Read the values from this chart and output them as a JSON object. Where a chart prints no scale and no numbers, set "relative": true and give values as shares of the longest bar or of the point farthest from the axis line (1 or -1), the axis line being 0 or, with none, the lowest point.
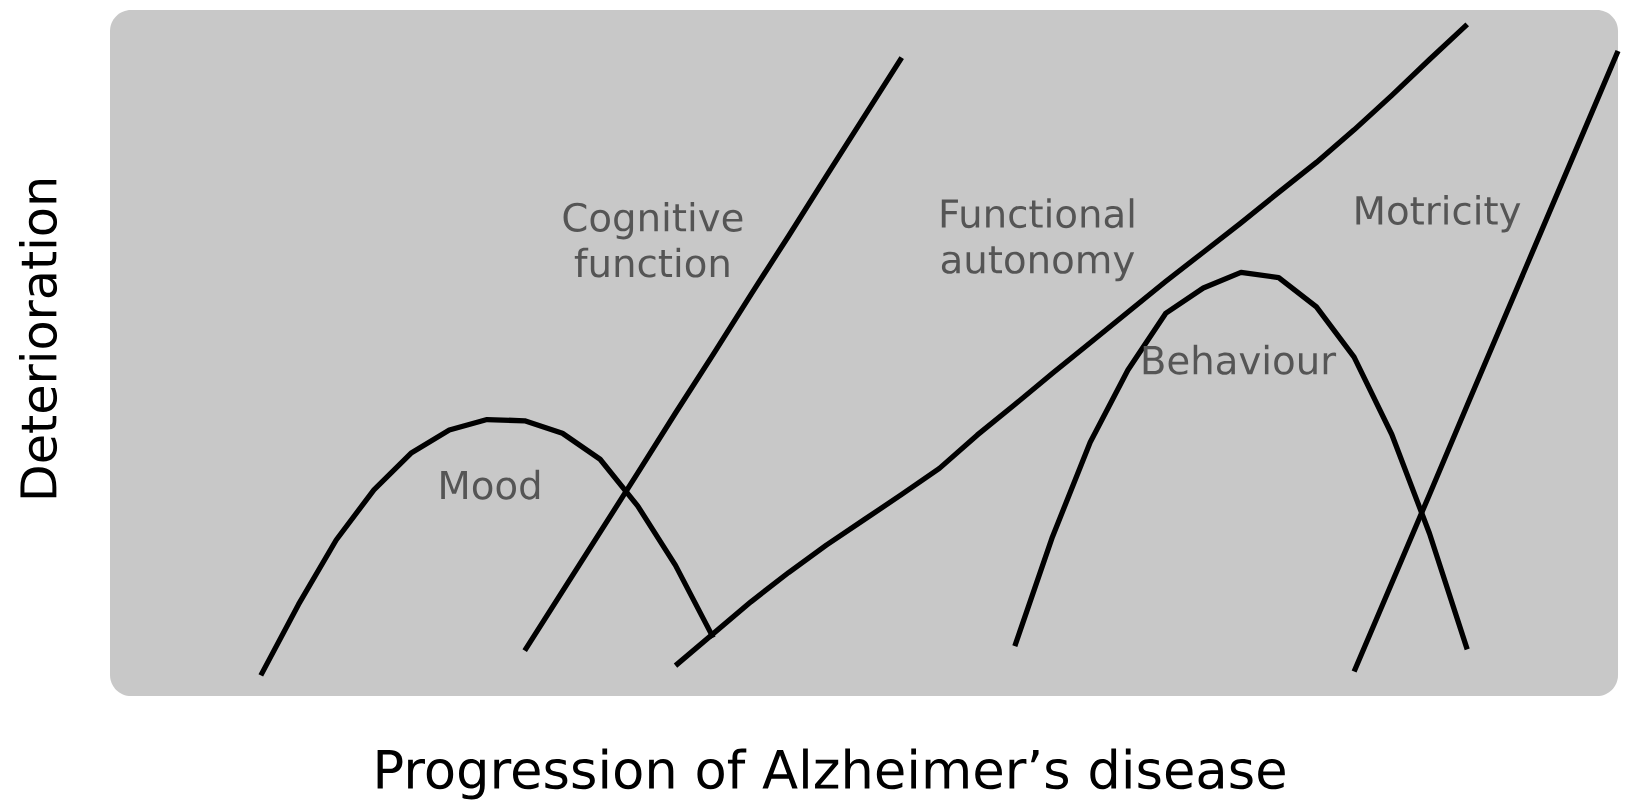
{
  "chart_data": {
    "type": "line",
    "relative": true,
    "xlabel": "Progression of Alzheimer’s disease",
    "ylabel": "Deterioration",
    "marker": "none",
    "line_style": "solid",
    "categories": [
      null,
      null,
      null,
      null,
      null,
      null,
      null,
      null,
      null,
      null,
      null,
      null,
      null,
      null,
      null,
      null,
      null,
      null,
      null,
      null,
      null,
      null,
      null,
      null,
      null,
      null,
      null,
      null,
      null,
      null,
      null,
      null,
      null,
      null,
      null,
      null,
      null,
      null,
      null,
      null,
      null
    ],
    "series": [
      {
        "name": "Mood",
        "color": "#000000",
        "values": [
          null,
          null,
          null,
          null,
          0,
          0.109,
          0.208,
          0.285,
          0.342,
          0.377,
          0.393,
          0.391,
          0.372,
          0.332,
          0.26,
          0.169,
          0.058,
          null,
          null,
          null,
          null,
          null,
          null,
          null,
          null,
          null,
          null,
          null,
          null,
          null,
          null,
          null,
          null,
          null,
          null,
          null,
          null,
          null,
          null,
          null,
          null
        ]
      },
      {
        "name": "Cognitive function",
        "color": "#000000",
        "values": [
          null,
          null,
          null,
          null,
          null,
          null,
          null,
          null,
          null,
          null,
          null,
          0.038,
          0.129,
          0.22,
          0.311,
          0.403,
          0.493,
          0.585,
          0.675,
          0.767,
          0.858,
          0.949,
          null,
          null,
          null,
          null,
          null,
          null,
          null,
          null,
          null,
          null,
          null,
          null,
          null,
          null,
          null,
          null,
          null,
          null,
          null
        ]
      },
      {
        "name": "Functional autonomy",
        "color": "#000000",
        "values": [
          null,
          null,
          null,
          null,
          null,
          null,
          null,
          null,
          null,
          null,
          null,
          null,
          null,
          null,
          null,
          0.015,
          0.064,
          0.113,
          0.158,
          0.2,
          0.239,
          0.278,
          0.318,
          0.369,
          0.416,
          0.464,
          0.511,
          0.558,
          0.605,
          0.65,
          0.695,
          0.742,
          0.788,
          0.838,
          0.891,
          0.946,
          1,
          null,
          null,
          null,
          null
        ]
      },
      {
        "name": "Behaviour",
        "color": "#000000",
        "values": [
          null,
          null,
          null,
          null,
          null,
          null,
          null,
          null,
          null,
          null,
          null,
          null,
          null,
          null,
          null,
          null,
          null,
          null,
          null,
          null,
          null,
          null,
          null,
          null,
          0.045,
          0.213,
          0.358,
          0.469,
          0.556,
          0.595,
          0.619,
          0.611,
          0.566,
          0.489,
          0.37,
          0.218,
          0.04,
          null,
          null,
          null,
          null
        ]
      },
      {
        "name": "Motricity",
        "color": "#000000",
        "values": [
          null,
          null,
          null,
          null,
          null,
          null,
          null,
          null,
          null,
          null,
          null,
          null,
          null,
          null,
          null,
          null,
          null,
          null,
          null,
          null,
          null,
          null,
          null,
          null,
          null,
          null,
          null,
          null,
          null,
          null,
          null,
          null,
          null,
          0.006,
          0.142,
          0.278,
          0.415,
          0.551,
          0.687,
          0.823,
          0.959
        ]
      }
    ]
  }
}
